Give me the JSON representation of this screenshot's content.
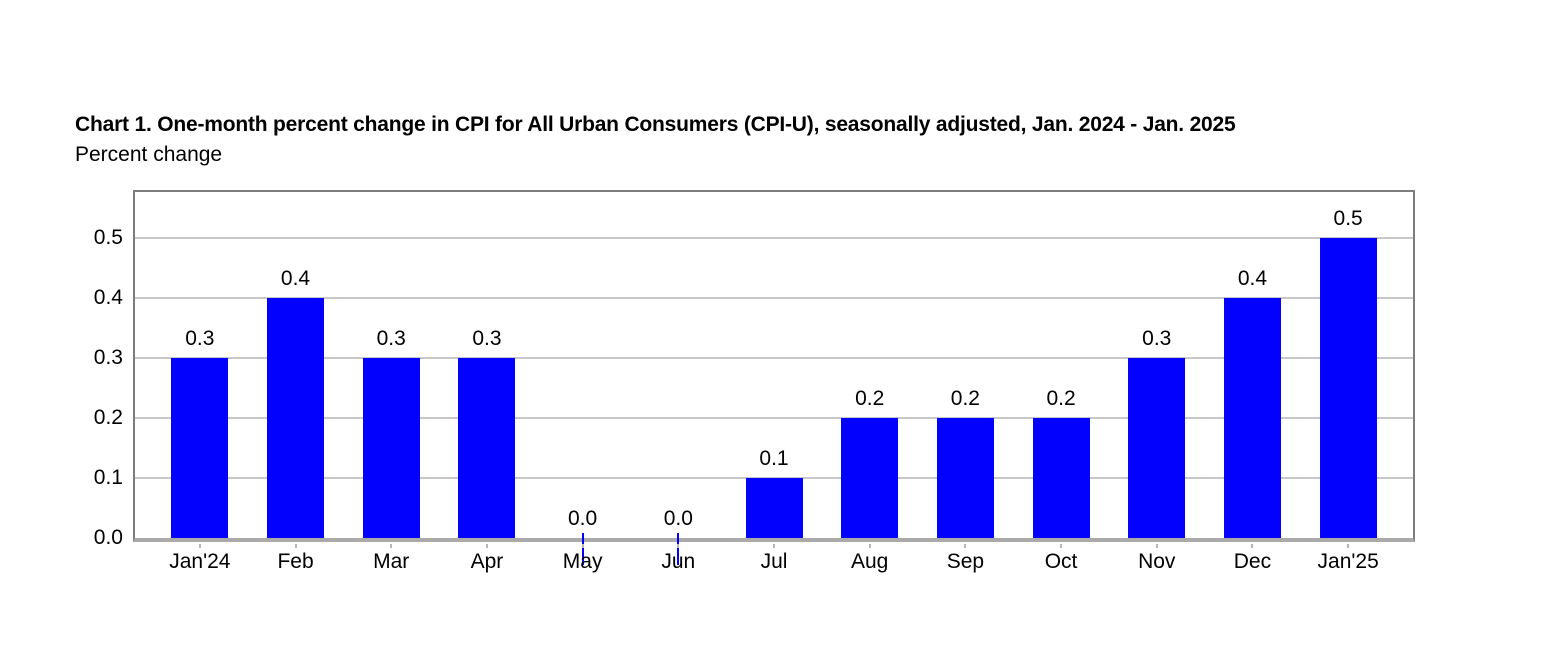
{
  "header": {
    "title": "Chart 1. One-month percent change in CPI for All Urban Consumers (CPI-U), seasonally adjusted, Jan. 2024 - Jan. 2025",
    "subtitle": "Percent change"
  },
  "chart_data": {
    "type": "bar",
    "title": "Chart 1. One-month percent change in CPI for All Urban Consumers (CPI-U), seasonally adjusted, Jan. 2024 - Jan. 2025",
    "ylabel": "Percent change",
    "xlabel": "",
    "categories": [
      "Jan'24",
      "Feb",
      "Mar",
      "Apr",
      "May",
      "Jun",
      "Jul",
      "Aug",
      "Sep",
      "Oct",
      "Nov",
      "Dec",
      "Jan'25"
    ],
    "values": [
      0.3,
      0.4,
      0.3,
      0.3,
      0.0,
      0.0,
      0.1,
      0.2,
      0.2,
      0.2,
      0.3,
      0.4,
      0.5
    ],
    "data_labels": [
      "0.3",
      "0.4",
      "0.3",
      "0.3",
      "0.0",
      "0.0",
      "0.1",
      "0.2",
      "0.2",
      "0.2",
      "0.3",
      "0.4",
      "0.5"
    ],
    "y_ticks": [
      "0.0",
      "0.1",
      "0.2",
      "0.3",
      "0.4",
      "0.5"
    ],
    "ylim": [
      0,
      0.58
    ],
    "grid": "horizontal",
    "legend": "none",
    "bar_color": "#0101fd",
    "gridline_color": "#c7c7c7",
    "frame_color": "#7d7d7d",
    "axis_color": "#aaaaaa"
  }
}
